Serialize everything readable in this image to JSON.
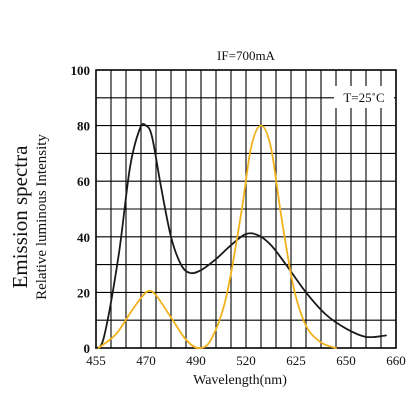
{
  "chart_data": {
    "type": "line",
    "title": "IF=700mA",
    "xlabel": "Wavelength(nm)",
    "ylabel": "Emission spectra",
    "ylabel_sub": "Relative luminous Intensity",
    "annotation": "T=25˚C",
    "x_tick_labels": [
      "455",
      "470",
      "490",
      "520",
      "625",
      "650",
      "660"
    ],
    "ylim": [
      0,
      100
    ],
    "y_ticks": [
      0,
      20,
      40,
      60,
      80,
      100
    ],
    "grid": true,
    "colors": {
      "black_series": "#1a1a1a",
      "yellow_series": "#f2b21c",
      "grid": "#000000"
    },
    "series": [
      {
        "color": "#1a1a1a",
        "points": [
          {
            "x": 0.0,
            "y": 0
          },
          {
            "x": 0.16,
            "y": 4
          },
          {
            "x": 0.45,
            "y": 33
          },
          {
            "x": 0.68,
            "y": 65
          },
          {
            "x": 0.88,
            "y": 79
          },
          {
            "x": 1.0,
            "y": 80
          },
          {
            "x": 1.12,
            "y": 76
          },
          {
            "x": 1.3,
            "y": 58
          },
          {
            "x": 1.5,
            "y": 40
          },
          {
            "x": 1.7,
            "y": 30
          },
          {
            "x": 1.88,
            "y": 27
          },
          {
            "x": 2.1,
            "y": 28
          },
          {
            "x": 2.4,
            "y": 32
          },
          {
            "x": 2.7,
            "y": 37
          },
          {
            "x": 3.0,
            "y": 41
          },
          {
            "x": 3.25,
            "y": 40.5
          },
          {
            "x": 3.5,
            "y": 37
          },
          {
            "x": 3.8,
            "y": 30
          },
          {
            "x": 4.2,
            "y": 20
          },
          {
            "x": 4.6,
            "y": 12
          },
          {
            "x": 5.0,
            "y": 7
          },
          {
            "x": 5.4,
            "y": 4
          },
          {
            "x": 5.8,
            "y": 4.5
          }
        ]
      },
      {
        "color": "#f2b21c",
        "points": [
          {
            "x": 0.05,
            "y": 0
          },
          {
            "x": 0.4,
            "y": 5
          },
          {
            "x": 0.7,
            "y": 13
          },
          {
            "x": 0.9,
            "y": 18
          },
          {
            "x": 1.05,
            "y": 20.5
          },
          {
            "x": 1.2,
            "y": 19
          },
          {
            "x": 1.5,
            "y": 11
          },
          {
            "x": 1.8,
            "y": 3
          },
          {
            "x": 2.05,
            "y": 0
          },
          {
            "x": 2.3,
            "y": 3
          },
          {
            "x": 2.6,
            "y": 18
          },
          {
            "x": 2.9,
            "y": 48
          },
          {
            "x": 3.1,
            "y": 72
          },
          {
            "x": 3.3,
            "y": 80
          },
          {
            "x": 3.5,
            "y": 72
          },
          {
            "x": 3.7,
            "y": 48
          },
          {
            "x": 3.95,
            "y": 22
          },
          {
            "x": 4.2,
            "y": 8
          },
          {
            "x": 4.5,
            "y": 2
          },
          {
            "x": 4.8,
            "y": 0
          }
        ]
      }
    ]
  }
}
